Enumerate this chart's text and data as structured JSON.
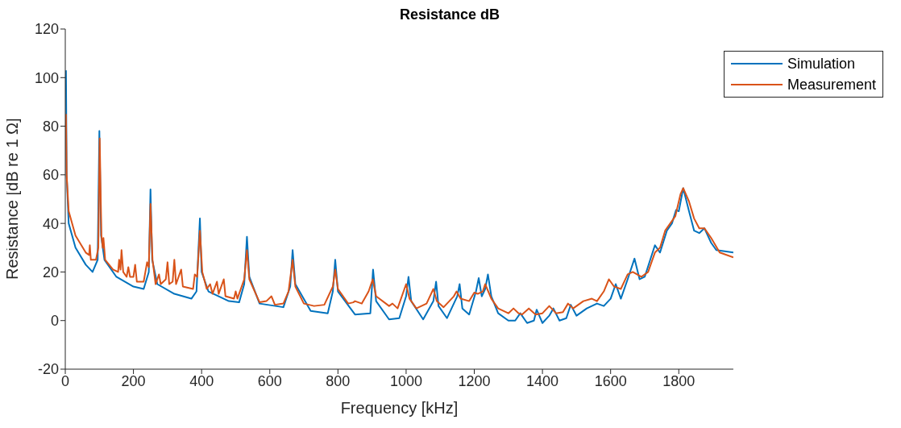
{
  "chart_data": {
    "type": "line",
    "title": "Resistance dB",
    "xlabel": "Frequency [kHz]",
    "ylabel": "Resistance [dB re 1 Ω]",
    "xlim": [
      0,
      1960
    ],
    "xticks": [
      0,
      200,
      400,
      600,
      800,
      1000,
      1200,
      1400,
      1600,
      1800
    ],
    "ylim": [
      -20,
      120
    ],
    "yticks": [
      -20,
      0,
      20,
      40,
      60,
      80,
      100,
      120
    ],
    "grid": false,
    "legend": "top right",
    "marker": "none",
    "line_style": "solid",
    "series": [
      {
        "name": "Simulation",
        "color": "#0072bd",
        "x": [
          2,
          4,
          10,
          30,
          60,
          80,
          95,
          100,
          105,
          115,
          150,
          200,
          230,
          245,
          250,
          255,
          270,
          320,
          370,
          385,
          395,
          400,
          420,
          480,
          510,
          525,
          533,
          540,
          570,
          640,
          660,
          667,
          675,
          720,
          770,
          785,
          792,
          800,
          850,
          895,
          903,
          912,
          950,
          980,
          1000,
          1007,
          1015,
          1050,
          1080,
          1088,
          1095,
          1120,
          1150,
          1157,
          1165,
          1185,
          1205,
          1213,
          1222,
          1232,
          1240,
          1250,
          1270,
          1300,
          1320,
          1335,
          1355,
          1375,
          1383,
          1400,
          1420,
          1432,
          1450,
          1470,
          1483,
          1500,
          1530,
          1560,
          1580,
          1600,
          1615,
          1630,
          1650,
          1670,
          1685,
          1700,
          1730,
          1745,
          1765,
          1780,
          1792,
          1800,
          1813,
          1830,
          1845,
          1860,
          1875,
          1895,
          1910,
          1960
        ],
        "values": [
          103,
          60,
          40,
          30,
          23,
          20,
          25,
          78,
          35,
          25,
          18,
          14,
          13,
          20,
          54,
          25,
          15,
          11,
          9,
          12,
          42,
          20,
          12,
          8,
          7.5,
          15,
          34.5,
          18,
          7,
          5.5,
          14,
          29,
          15,
          4,
          3,
          12,
          25,
          12,
          2.5,
          3,
          21,
          8,
          0.5,
          1,
          10,
          18,
          8,
          0.5,
          8,
          16,
          6,
          1,
          10,
          15,
          5,
          2.5,
          12,
          17.5,
          10,
          13,
          19,
          10,
          3,
          0,
          0,
          3,
          -1,
          0,
          4.5,
          -1,
          2,
          5,
          0,
          1,
          6.5,
          2,
          5,
          7,
          6,
          9,
          15,
          9,
          17,
          25.5,
          17,
          18,
          31,
          28,
          37,
          40,
          45.5,
          45,
          54.5,
          45,
          37,
          36,
          38,
          32,
          29,
          28
        ]
      },
      {
        "name": "Measurement",
        "color": "#d95319",
        "x": [
          2,
          4,
          10,
          30,
          60,
          70,
          72,
          75,
          90,
          97,
          101,
          106,
          110,
          112,
          117,
          140,
          155,
          158,
          162,
          165,
          170,
          180,
          185,
          190,
          200,
          205,
          210,
          230,
          240,
          245,
          250,
          256,
          265,
          275,
          280,
          295,
          300,
          305,
          315,
          320,
          325,
          340,
          345,
          375,
          380,
          387,
          395,
          402,
          415,
          425,
          432,
          445,
          450,
          465,
          470,
          495,
          500,
          505,
          525,
          533,
          540,
          570,
          590,
          605,
          615,
          640,
          655,
          667,
          675,
          700,
          730,
          760,
          785,
          792,
          800,
          830,
          845,
          850,
          870,
          890,
          902,
          912,
          950,
          960,
          975,
          1000,
          1010,
          1030,
          1060,
          1080,
          1090,
          1110,
          1140,
          1148,
          1160,
          1185,
          1200,
          1210,
          1225,
          1232,
          1250,
          1270,
          1285,
          1300,
          1315,
          1330,
          1340,
          1360,
          1380,
          1400,
          1420,
          1440,
          1460,
          1475,
          1490,
          1520,
          1545,
          1560,
          1580,
          1595,
          1610,
          1630,
          1650,
          1665,
          1690,
          1710,
          1730,
          1745,
          1760,
          1790,
          1805,
          1813,
          1830,
          1845,
          1860,
          1875,
          1895,
          1920,
          1960
        ],
        "values": [
          85,
          60,
          45,
          35,
          28,
          27,
          31,
          25,
          25,
          30,
          75,
          35,
          30,
          34,
          25,
          21,
          20,
          25,
          21,
          29,
          20,
          18,
          22,
          18,
          18,
          23,
          16,
          16,
          24,
          22,
          48,
          25,
          15,
          19,
          15,
          17,
          24,
          15,
          16,
          25,
          15,
          21,
          14,
          13,
          19,
          18,
          37,
          20,
          13,
          15,
          11,
          16,
          11,
          17,
          10,
          9,
          12,
          9,
          17,
          29,
          17,
          7.5,
          8,
          10,
          6.5,
          7,
          12,
          25,
          14,
          7,
          6,
          6.5,
          14,
          21,
          13,
          7,
          7.5,
          8,
          7,
          12,
          17,
          10,
          6,
          7,
          5,
          15,
          9,
          5,
          7,
          13,
          8,
          5.5,
          10,
          12,
          9,
          8,
          11.5,
          11,
          12,
          15,
          9,
          5,
          4,
          3,
          5,
          3,
          2.5,
          5,
          2.5,
          3,
          6,
          3,
          3.5,
          7,
          5,
          8,
          9,
          8,
          12,
          17,
          14,
          13,
          19,
          20,
          18,
          20,
          28,
          30,
          37,
          43,
          52,
          54.5,
          49,
          42,
          38,
          38,
          34,
          28,
          26
        ]
      }
    ]
  }
}
